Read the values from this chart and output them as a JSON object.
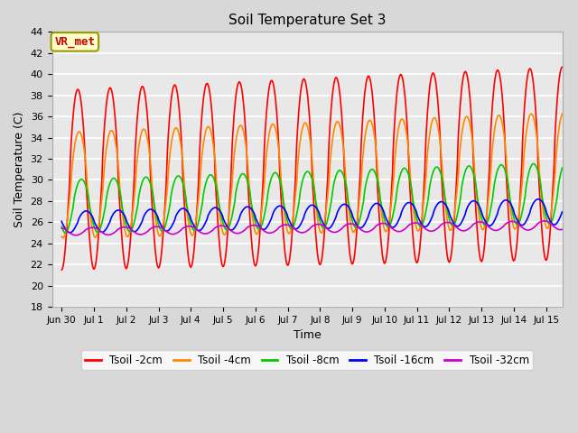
{
  "title": "Soil Temperature Set 3",
  "xlabel": "Time",
  "ylabel": "Soil Temperature (C)",
  "ylim": [
    18,
    44
  ],
  "yticks": [
    18,
    20,
    22,
    24,
    26,
    28,
    30,
    32,
    34,
    36,
    38,
    40,
    42,
    44
  ],
  "fig_facecolor": "#d8d8d8",
  "plot_facecolor": "#e8e8e8",
  "grid_color": "#ffffff",
  "series": {
    "Tsoil -2cm": {
      "color": "#ff0000",
      "lw": 1.2,
      "amp": 8.5,
      "base": 30.0,
      "phase": 0.0,
      "trend": 0.1,
      "amp_growth": 0.04
    },
    "Tsoil -4cm": {
      "color": "#ff8800",
      "lw": 1.2,
      "amp": 5.0,
      "base": 29.5,
      "phase": 0.25,
      "trend": 0.09,
      "amp_growth": 0.03
    },
    "Tsoil -8cm": {
      "color": "#00cc00",
      "lw": 1.2,
      "amp": 2.5,
      "base": 27.5,
      "phase": 0.7,
      "trend": 0.08,
      "amp_growth": 0.025
    },
    "Tsoil -16cm": {
      "color": "#0000ff",
      "lw": 1.2,
      "amp": 1.0,
      "base": 26.0,
      "phase": 1.6,
      "trend": 0.065,
      "amp_growth": 0.015
    },
    "Tsoil -32cm": {
      "color": "#cc00cc",
      "lw": 1.2,
      "amp": 0.35,
      "base": 25.1,
      "phase": 2.8,
      "trend": 0.04,
      "amp_growth": 0.005
    }
  },
  "xtick_labels": [
    "Jun 30",
    "Jul 1",
    "Jul 2",
    "Jul 3",
    "Jul 4",
    "Jul 5",
    "Jul 6",
    "Jul 7",
    "Jul 8",
    "Jul 9",
    "Jul 10",
    "Jul 11",
    "Jul 12",
    "Jul 13",
    "Jul 14",
    "Jul 15"
  ],
  "annotation_text": "VR_met",
  "annotation_color": "#cc0000",
  "annotation_bg": "#ffffcc",
  "annotation_border": "#999900"
}
